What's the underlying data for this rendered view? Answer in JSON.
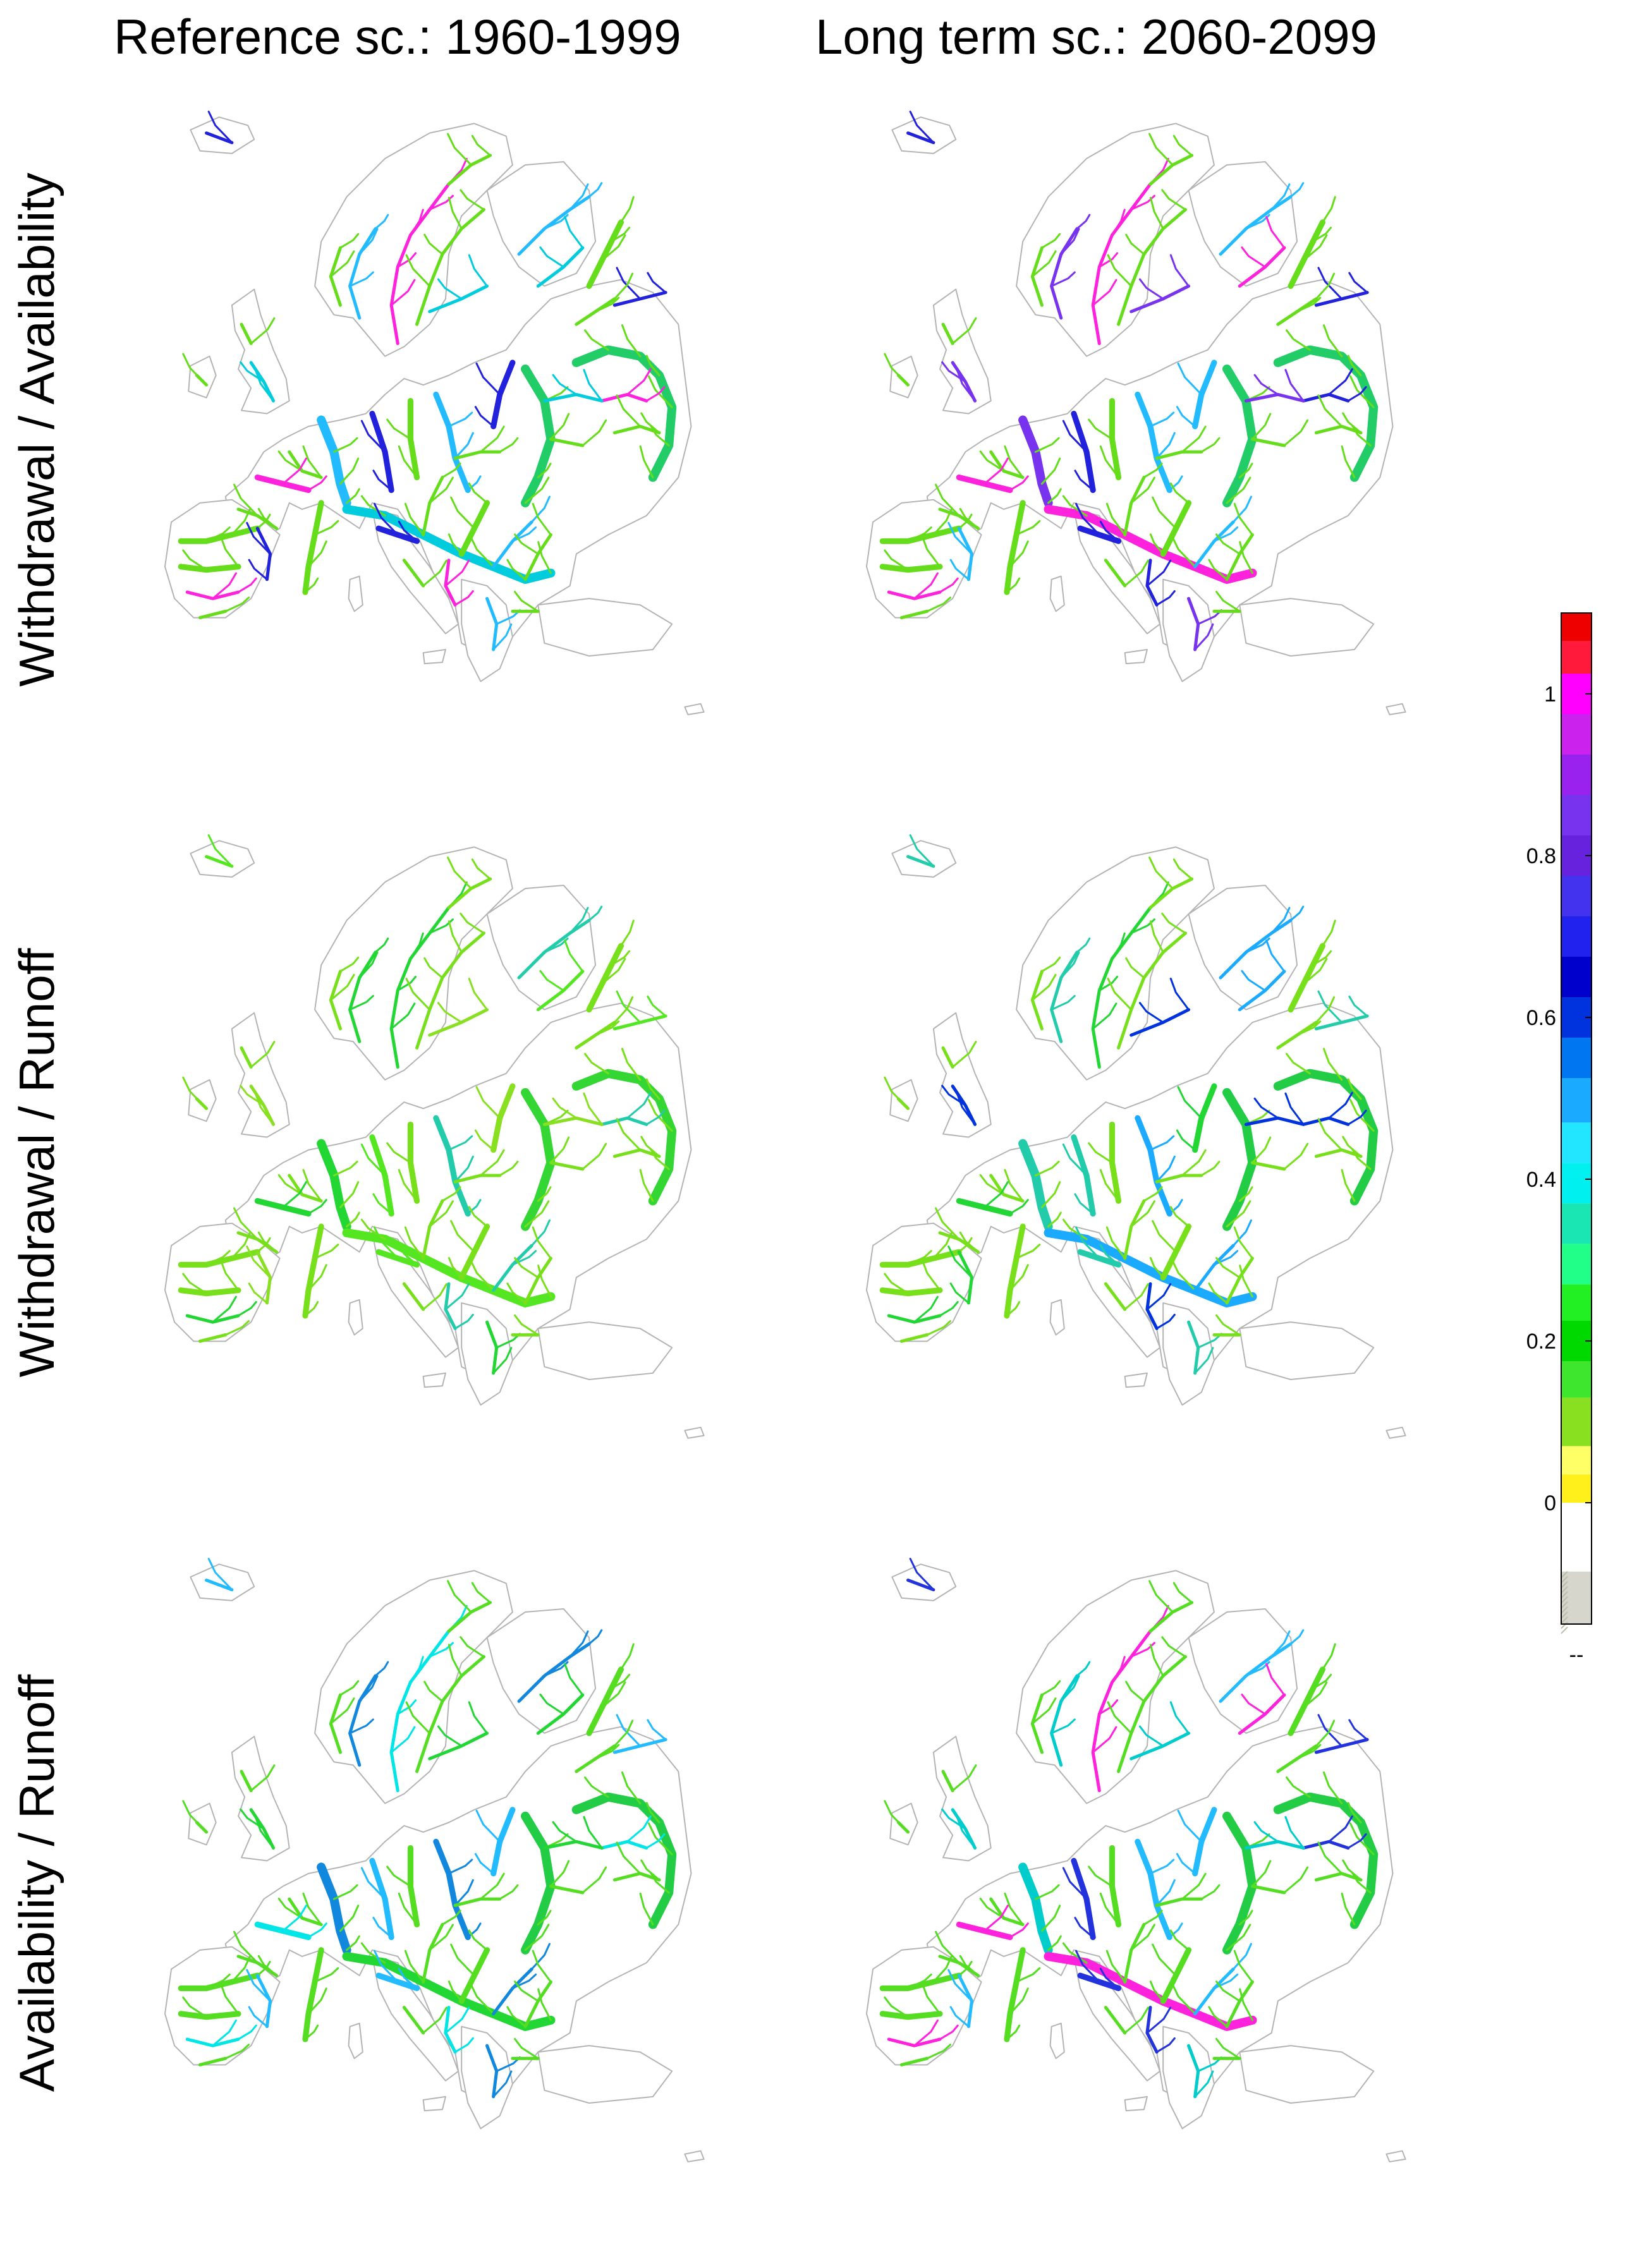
{
  "column_titles": [
    "Reference sc.: 1960-1999",
    "Long term sc.: 2060-2099"
  ],
  "row_titles": [
    "Withdrawal / Availability",
    "Withdrawal / Runoff",
    "Availability / Runoff"
  ],
  "colorbar": {
    "range": [
      -0.15,
      1.1
    ],
    "tick_values": [
      0,
      0.2,
      0.4,
      0.6,
      0.8,
      1
    ],
    "tick_labels": [
      "0",
      "0.2",
      "0.4",
      "0.6",
      "0.8",
      "1"
    ],
    "missing_label": "--",
    "bands": [
      {
        "from": -0.15,
        "to": -0.085,
        "color": "#d6d6cc"
      },
      {
        "from": -0.085,
        "to": 0.0,
        "color": "#ffffff"
      },
      {
        "from": 0.0,
        "to": 0.035,
        "color": "#ffef1a"
      },
      {
        "from": 0.035,
        "to": 0.07,
        "color": "#ffff66"
      },
      {
        "from": 0.07,
        "to": 0.13,
        "color": "#88e021"
      },
      {
        "from": 0.13,
        "to": 0.175,
        "color": "#3ee62e"
      },
      {
        "from": 0.175,
        "to": 0.225,
        "color": "#00d900"
      },
      {
        "from": 0.225,
        "to": 0.27,
        "color": "#22f022"
      },
      {
        "from": 0.27,
        "to": 0.32,
        "color": "#22ff88"
      },
      {
        "from": 0.32,
        "to": 0.37,
        "color": "#1ae6b3"
      },
      {
        "from": 0.37,
        "to": 0.42,
        "color": "#00f0f0"
      },
      {
        "from": 0.42,
        "to": 0.47,
        "color": "#22e6ff"
      },
      {
        "from": 0.47,
        "to": 0.525,
        "color": "#1aaaff"
      },
      {
        "from": 0.525,
        "to": 0.575,
        "color": "#0077f0"
      },
      {
        "from": 0.575,
        "to": 0.625,
        "color": "#0033dd"
      },
      {
        "from": 0.625,
        "to": 0.675,
        "color": "#0000cc"
      },
      {
        "from": 0.675,
        "to": 0.725,
        "color": "#2222ee"
      },
      {
        "from": 0.725,
        "to": 0.775,
        "color": "#4433ee"
      },
      {
        "from": 0.775,
        "to": 0.825,
        "color": "#6622dd"
      },
      {
        "from": 0.825,
        "to": 0.875,
        "color": "#7733ee"
      },
      {
        "from": 0.875,
        "to": 0.925,
        "color": "#9922ee"
      },
      {
        "from": 0.925,
        "to": 0.975,
        "color": "#cc22ee"
      },
      {
        "from": 0.975,
        "to": 1.025,
        "color": "#ff00ff"
      },
      {
        "from": 1.025,
        "to": 1.065,
        "color": "#ff1a3c"
      },
      {
        "from": 1.065,
        "to": 1.1,
        "color": "#ee0000"
      }
    ]
  },
  "panels": [
    {
      "id": "wa-ref",
      "row": 0,
      "col": 0,
      "main_color": "#66dd1a",
      "trunk_color": "#22cc66",
      "accent_colors": [
        "#ff22dd",
        "#2222dd",
        "#22bbff",
        "#00ccdd"
      ]
    },
    {
      "id": "wa-long",
      "row": 0,
      "col": 1,
      "main_color": "#66dd1a",
      "trunk_color": "#22cc66",
      "accent_colors": [
        "#ff22dd",
        "#2222dd",
        "#22bbff",
        "#7733ee"
      ]
    },
    {
      "id": "wr-ref",
      "row": 1,
      "col": 0,
      "main_color": "#77e01a",
      "trunk_color": "#33d633",
      "accent_colors": [
        "#22d633",
        "#55e622",
        "#22ccaa",
        "#88e021"
      ]
    },
    {
      "id": "wr-long",
      "row": 1,
      "col": 1,
      "main_color": "#77e01a",
      "trunk_color": "#22cc44",
      "accent_colors": [
        "#22d633",
        "#22ccaa",
        "#1aaaff",
        "#0033dd"
      ]
    },
    {
      "id": "ar-ref",
      "row": 2,
      "col": 0,
      "main_color": "#55dd22",
      "trunk_color": "#22cc44",
      "accent_colors": [
        "#00e6e6",
        "#22bbff",
        "#1188dd",
        "#22d633"
      ]
    },
    {
      "id": "ar-long",
      "row": 2,
      "col": 1,
      "main_color": "#55dd22",
      "trunk_color": "#22cc44",
      "accent_colors": [
        "#ff22dd",
        "#2233dd",
        "#22bbff",
        "#00cccc"
      ]
    }
  ]
}
